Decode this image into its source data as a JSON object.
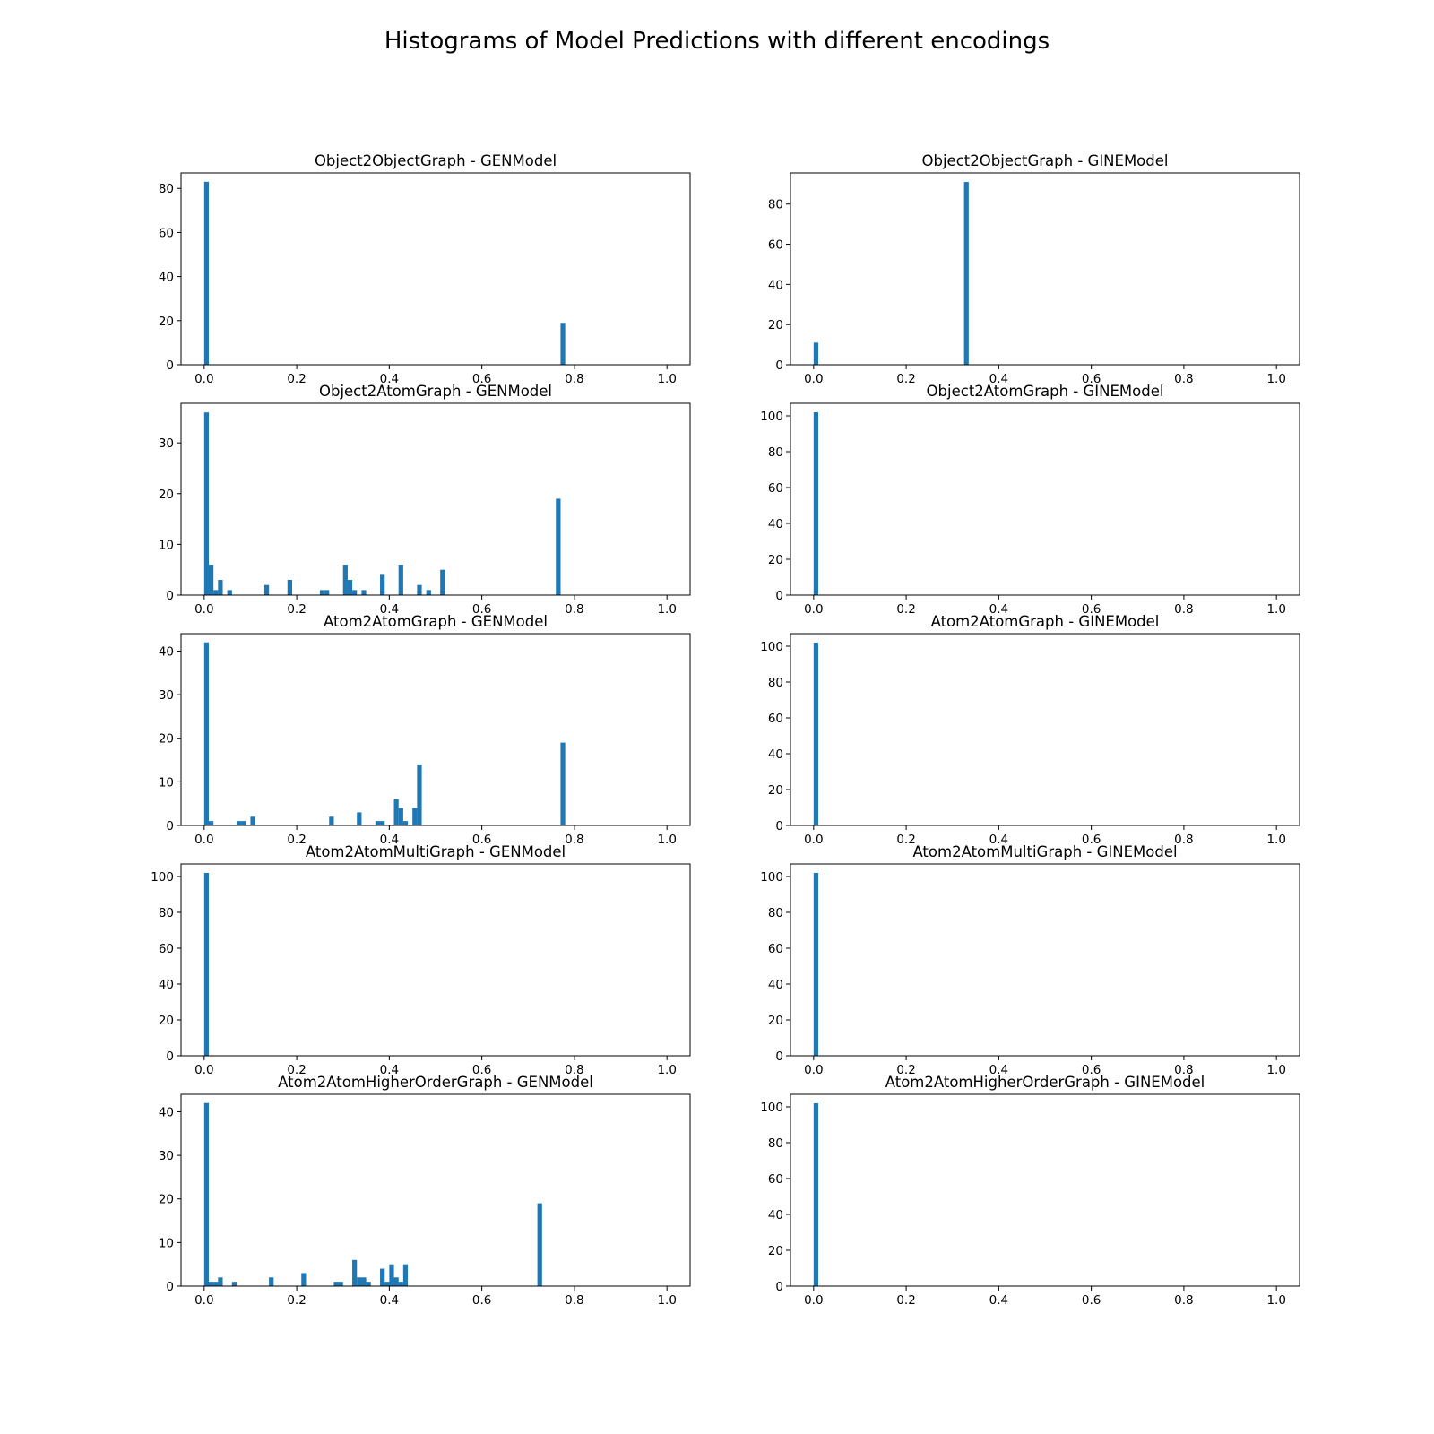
{
  "figure": {
    "title": "Histograms of Model Predictions with different encodings",
    "bar_color": "#1f77b4"
  },
  "chart_data": [
    {
      "type": "bar",
      "title": "Object2ObjectGraph - GENModel",
      "xlabel": "",
      "ylabel": "",
      "xlim": [
        -0.05,
        1.05
      ],
      "ylim": [
        0,
        87
      ],
      "xticks": [
        0.0,
        0.2,
        0.4,
        0.6,
        0.8,
        1.0
      ],
      "xtick_labels": [
        "0.0",
        "0.2",
        "0.4",
        "0.6",
        "0.8",
        "1.0"
      ],
      "yticks": [
        0,
        20,
        40,
        60,
        80
      ],
      "ytick_labels": [
        "0",
        "20",
        "40",
        "60",
        "80"
      ],
      "bin_width": 0.0101,
      "bins": [
        {
          "x": 0.0,
          "count": 83
        },
        {
          "x": 0.77,
          "count": 19
        }
      ]
    },
    {
      "type": "bar",
      "title": "Object2ObjectGraph - GINEModel",
      "xlabel": "",
      "ylabel": "",
      "xlim": [
        -0.05,
        1.05
      ],
      "ylim": [
        0,
        95.5
      ],
      "xticks": [
        0.0,
        0.2,
        0.4,
        0.6,
        0.8,
        1.0
      ],
      "xtick_labels": [
        "0.0",
        "0.2",
        "0.4",
        "0.6",
        "0.8",
        "1.0"
      ],
      "yticks": [
        0,
        20,
        40,
        60,
        80
      ],
      "ytick_labels": [
        "0",
        "20",
        "40",
        "60",
        "80"
      ],
      "bin_width": 0.0101,
      "bins": [
        {
          "x": 0.0,
          "count": 11
        },
        {
          "x": 0.325,
          "count": 91
        }
      ]
    },
    {
      "type": "bar",
      "title": "Object2AtomGraph - GENModel",
      "xlabel": "",
      "ylabel": "",
      "xlim": [
        -0.05,
        1.05
      ],
      "ylim": [
        0,
        37.8
      ],
      "xticks": [
        0.0,
        0.2,
        0.4,
        0.6,
        0.8,
        1.0
      ],
      "xtick_labels": [
        "0.0",
        "0.2",
        "0.4",
        "0.6",
        "0.8",
        "1.0"
      ],
      "yticks": [
        0,
        10,
        20,
        30
      ],
      "ytick_labels": [
        "0",
        "10",
        "20",
        "30"
      ],
      "bin_width": 0.0101,
      "bins": [
        {
          "x": 0.0,
          "count": 36
        },
        {
          "x": 0.01,
          "count": 6
        },
        {
          "x": 0.02,
          "count": 1
        },
        {
          "x": 0.03,
          "count": 3
        },
        {
          "x": 0.05,
          "count": 1
        },
        {
          "x": 0.13,
          "count": 2
        },
        {
          "x": 0.18,
          "count": 3
        },
        {
          "x": 0.25,
          "count": 1
        },
        {
          "x": 0.26,
          "count": 1
        },
        {
          "x": 0.3,
          "count": 6
        },
        {
          "x": 0.31,
          "count": 3
        },
        {
          "x": 0.32,
          "count": 1
        },
        {
          "x": 0.34,
          "count": 1
        },
        {
          "x": 0.38,
          "count": 4
        },
        {
          "x": 0.42,
          "count": 6
        },
        {
          "x": 0.46,
          "count": 2
        },
        {
          "x": 0.48,
          "count": 1
        },
        {
          "x": 0.51,
          "count": 5
        },
        {
          "x": 0.76,
          "count": 19
        }
      ]
    },
    {
      "type": "bar",
      "title": "Object2AtomGraph - GINEModel",
      "xlabel": "",
      "ylabel": "",
      "xlim": [
        -0.05,
        1.05
      ],
      "ylim": [
        0,
        107
      ],
      "xticks": [
        0.0,
        0.2,
        0.4,
        0.6,
        0.8,
        1.0
      ],
      "xtick_labels": [
        "0.0",
        "0.2",
        "0.4",
        "0.6",
        "0.8",
        "1.0"
      ],
      "yticks": [
        0,
        20,
        40,
        60,
        80,
        100
      ],
      "ytick_labels": [
        "0",
        "20",
        "40",
        "60",
        "80",
        "100"
      ],
      "bin_width": 0.0101,
      "bins": [
        {
          "x": 0.0,
          "count": 102
        }
      ]
    },
    {
      "type": "bar",
      "title": "Atom2AtomGraph - GENModel",
      "xlabel": "",
      "ylabel": "",
      "xlim": [
        -0.05,
        1.05
      ],
      "ylim": [
        0,
        44
      ],
      "xticks": [
        0.0,
        0.2,
        0.4,
        0.6,
        0.8,
        1.0
      ],
      "xtick_labels": [
        "0.0",
        "0.2",
        "0.4",
        "0.6",
        "0.8",
        "1.0"
      ],
      "yticks": [
        0,
        10,
        20,
        30,
        40
      ],
      "ytick_labels": [
        "0",
        "10",
        "20",
        "30",
        "40"
      ],
      "bin_width": 0.0101,
      "bins": [
        {
          "x": 0.0,
          "count": 42
        },
        {
          "x": 0.01,
          "count": 1
        },
        {
          "x": 0.07,
          "count": 1
        },
        {
          "x": 0.08,
          "count": 1
        },
        {
          "x": 0.1,
          "count": 2
        },
        {
          "x": 0.27,
          "count": 2
        },
        {
          "x": 0.33,
          "count": 3
        },
        {
          "x": 0.37,
          "count": 1
        },
        {
          "x": 0.38,
          "count": 1
        },
        {
          "x": 0.41,
          "count": 6
        },
        {
          "x": 0.42,
          "count": 4
        },
        {
          "x": 0.43,
          "count": 1
        },
        {
          "x": 0.45,
          "count": 4
        },
        {
          "x": 0.46,
          "count": 14
        },
        {
          "x": 0.77,
          "count": 19
        }
      ]
    },
    {
      "type": "bar",
      "title": "Atom2AtomGraph - GINEModel",
      "xlabel": "",
      "ylabel": "",
      "xlim": [
        -0.05,
        1.05
      ],
      "ylim": [
        0,
        107
      ],
      "xticks": [
        0.0,
        0.2,
        0.4,
        0.6,
        0.8,
        1.0
      ],
      "xtick_labels": [
        "0.0",
        "0.2",
        "0.4",
        "0.6",
        "0.8",
        "1.0"
      ],
      "yticks": [
        0,
        20,
        40,
        60,
        80,
        100
      ],
      "ytick_labels": [
        "0",
        "20",
        "40",
        "60",
        "80",
        "100"
      ],
      "bin_width": 0.0101,
      "bins": [
        {
          "x": 0.0,
          "count": 102
        }
      ]
    },
    {
      "type": "bar",
      "title": "Atom2AtomMultiGraph - GENModel",
      "xlabel": "",
      "ylabel": "",
      "xlim": [
        -0.05,
        1.05
      ],
      "ylim": [
        0,
        107
      ],
      "xticks": [
        0.0,
        0.2,
        0.4,
        0.6,
        0.8,
        1.0
      ],
      "xtick_labels": [
        "0.0",
        "0.2",
        "0.4",
        "0.6",
        "0.8",
        "1.0"
      ],
      "yticks": [
        0,
        20,
        40,
        60,
        80,
        100
      ],
      "ytick_labels": [
        "0",
        "20",
        "40",
        "60",
        "80",
        "100"
      ],
      "bin_width": 0.0101,
      "bins": [
        {
          "x": 0.0,
          "count": 102
        }
      ]
    },
    {
      "type": "bar",
      "title": "Atom2AtomMultiGraph - GINEModel",
      "xlabel": "",
      "ylabel": "",
      "xlim": [
        -0.05,
        1.05
      ],
      "ylim": [
        0,
        107
      ],
      "xticks": [
        0.0,
        0.2,
        0.4,
        0.6,
        0.8,
        1.0
      ],
      "xtick_labels": [
        "0.0",
        "0.2",
        "0.4",
        "0.6",
        "0.8",
        "1.0"
      ],
      "yticks": [
        0,
        20,
        40,
        60,
        80,
        100
      ],
      "ytick_labels": [
        "0",
        "20",
        "40",
        "60",
        "80",
        "100"
      ],
      "bin_width": 0.0101,
      "bins": [
        {
          "x": 0.0,
          "count": 102
        }
      ]
    },
    {
      "type": "bar",
      "title": "Atom2AtomHigherOrderGraph - GENModel",
      "xlabel": "",
      "ylabel": "",
      "xlim": [
        -0.05,
        1.05
      ],
      "ylim": [
        0,
        44
      ],
      "xticks": [
        0.0,
        0.2,
        0.4,
        0.6,
        0.8,
        1.0
      ],
      "xtick_labels": [
        "0.0",
        "0.2",
        "0.4",
        "0.6",
        "0.8",
        "1.0"
      ],
      "yticks": [
        0,
        10,
        20,
        30,
        40
      ],
      "ytick_labels": [
        "0",
        "10",
        "20",
        "30",
        "40"
      ],
      "bin_width": 0.0101,
      "bins": [
        {
          "x": 0.0,
          "count": 42
        },
        {
          "x": 0.01,
          "count": 1
        },
        {
          "x": 0.02,
          "count": 1
        },
        {
          "x": 0.03,
          "count": 2
        },
        {
          "x": 0.06,
          "count": 1
        },
        {
          "x": 0.14,
          "count": 2
        },
        {
          "x": 0.21,
          "count": 3
        },
        {
          "x": 0.28,
          "count": 1
        },
        {
          "x": 0.29,
          "count": 1
        },
        {
          "x": 0.32,
          "count": 6
        },
        {
          "x": 0.33,
          "count": 2
        },
        {
          "x": 0.34,
          "count": 2
        },
        {
          "x": 0.35,
          "count": 1
        },
        {
          "x": 0.38,
          "count": 4
        },
        {
          "x": 0.39,
          "count": 1
        },
        {
          "x": 0.4,
          "count": 5
        },
        {
          "x": 0.41,
          "count": 2
        },
        {
          "x": 0.42,
          "count": 1
        },
        {
          "x": 0.43,
          "count": 5
        },
        {
          "x": 0.72,
          "count": 19
        }
      ]
    },
    {
      "type": "bar",
      "title": "Atom2AtomHigherOrderGraph - GINEModel",
      "xlabel": "",
      "ylabel": "",
      "xlim": [
        -0.05,
        1.05
      ],
      "ylim": [
        0,
        107
      ],
      "xticks": [
        0.0,
        0.2,
        0.4,
        0.6,
        0.8,
        1.0
      ],
      "xtick_labels": [
        "0.0",
        "0.2",
        "0.4",
        "0.6",
        "0.8",
        "1.0"
      ],
      "yticks": [
        0,
        20,
        40,
        60,
        80,
        100
      ],
      "ytick_labels": [
        "0",
        "20",
        "40",
        "60",
        "80",
        "100"
      ],
      "bin_width": 0.0101,
      "bins": [
        {
          "x": 0.0,
          "count": 102
        }
      ]
    }
  ]
}
